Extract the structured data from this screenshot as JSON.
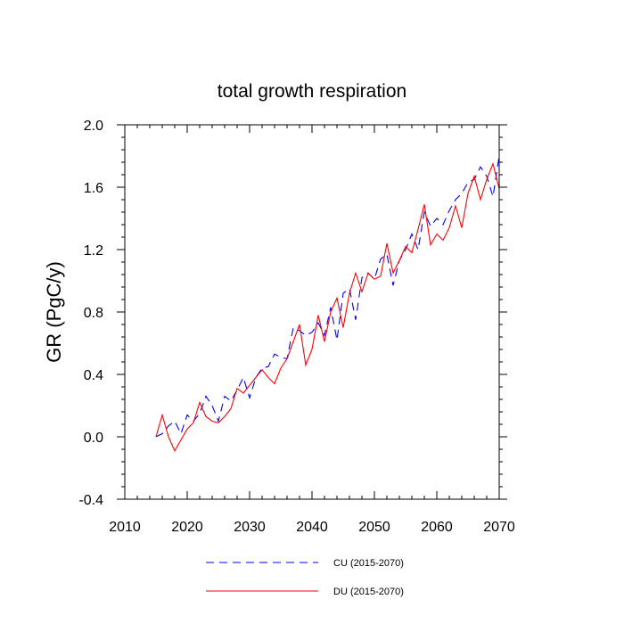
{
  "chart_data": {
    "type": "line",
    "title": "total growth respiration",
    "xlabel": "",
    "ylabel": "GR  (PgC/y)",
    "xlim": [
      2010,
      2070
    ],
    "ylim": [
      -0.4,
      2.0
    ],
    "xticks": [
      2010,
      2020,
      2030,
      2040,
      2050,
      2060,
      2070
    ],
    "xtick_labels": [
      "2010",
      "2020",
      "2030",
      "2040",
      "2050",
      "2060",
      "2070"
    ],
    "yticks": [
      -0.4,
      0.0,
      0.4,
      0.8,
      1.2,
      1.6,
      2.0
    ],
    "ytick_labels": [
      "-0.4",
      "0.0",
      "0.4",
      "0.8",
      "1.2",
      "1.6",
      "2.0"
    ],
    "x": [
      2015,
      2016,
      2017,
      2018,
      2019,
      2020,
      2021,
      2022,
      2023,
      2024,
      2025,
      2026,
      2027,
      2028,
      2029,
      2030,
      2031,
      2032,
      2033,
      2034,
      2035,
      2036,
      2037,
      2038,
      2039,
      2040,
      2041,
      2042,
      2043,
      2044,
      2045,
      2046,
      2047,
      2048,
      2049,
      2050,
      2051,
      2052,
      2053,
      2054,
      2055,
      2056,
      2057,
      2058,
      2059,
      2060,
      2061,
      2062,
      2063,
      2064,
      2065,
      2066,
      2067,
      2068,
      2069,
      2070
    ],
    "series": [
      {
        "name": "CU (2015-2070)",
        "color": "#0000ff",
        "style": "dashed",
        "values": [
          0.0,
          0.02,
          0.07,
          0.1,
          0.02,
          0.14,
          0.1,
          0.15,
          0.26,
          0.2,
          0.1,
          0.26,
          0.23,
          0.3,
          0.38,
          0.25,
          0.38,
          0.44,
          0.45,
          0.53,
          0.51,
          0.5,
          0.7,
          0.68,
          0.65,
          0.67,
          0.73,
          0.65,
          0.83,
          0.62,
          0.92,
          0.95,
          0.75,
          1.02,
          1.05,
          1.01,
          1.14,
          1.17,
          0.97,
          1.13,
          1.2,
          1.3,
          1.2,
          1.44,
          1.35,
          1.4,
          1.36,
          1.45,
          1.52,
          1.56,
          1.63,
          1.65,
          1.73,
          1.67,
          1.54,
          1.8
        ]
      },
      {
        "name": "DU (2015-2070)",
        "color": "#ff0000",
        "style": "solid",
        "values": [
          0.0,
          0.14,
          0.0,
          -0.09,
          -0.02,
          0.05,
          0.09,
          0.22,
          0.13,
          0.1,
          0.09,
          0.13,
          0.18,
          0.31,
          0.28,
          0.33,
          0.38,
          0.43,
          0.38,
          0.34,
          0.44,
          0.5,
          0.61,
          0.72,
          0.46,
          0.56,
          0.78,
          0.61,
          0.8,
          0.89,
          0.7,
          0.92,
          1.05,
          0.93,
          1.05,
          1.01,
          1.03,
          1.24,
          1.05,
          1.13,
          1.22,
          1.18,
          1.33,
          1.49,
          1.23,
          1.3,
          1.26,
          1.34,
          1.48,
          1.34,
          1.56,
          1.67,
          1.52,
          1.65,
          1.75,
          1.59
        ]
      }
    ],
    "legend": "bottom-center"
  }
}
